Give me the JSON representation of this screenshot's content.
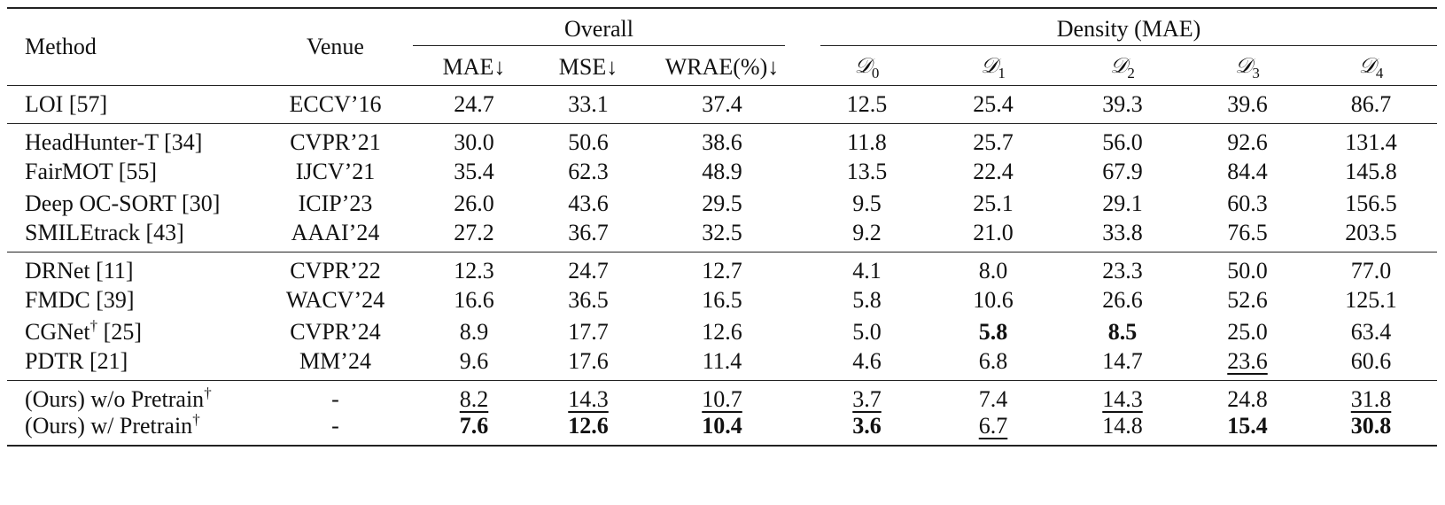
{
  "header": {
    "method": "Method",
    "venue": "Venue",
    "overall": "Overall",
    "density": "Density (MAE)",
    "metrics": [
      "MAE↓",
      "MSE↓",
      "WRAE(%)↓"
    ],
    "density_symbol": "𝒟",
    "density_subs": [
      "0",
      "1",
      "2",
      "3",
      "4"
    ]
  },
  "groups": [
    [
      {
        "method": "LOI [57]",
        "sup": "",
        "venue": "ECCV’16",
        "cells": [
          {
            "v": "24.7"
          },
          {
            "v": "33.1"
          },
          {
            "v": "37.4"
          },
          {
            "v": "12.5"
          },
          {
            "v": "25.4"
          },
          {
            "v": "39.3"
          },
          {
            "v": "39.6"
          },
          {
            "v": "86.7"
          }
        ]
      }
    ],
    [
      {
        "method": "HeadHunter-T [34]",
        "sup": "",
        "venue": "CVPR’21",
        "cells": [
          {
            "v": "30.0"
          },
          {
            "v": "50.6"
          },
          {
            "v": "38.6"
          },
          {
            "v": "11.8"
          },
          {
            "v": "25.7"
          },
          {
            "v": "56.0"
          },
          {
            "v": "92.6"
          },
          {
            "v": "131.4"
          }
        ]
      },
      {
        "method": "FairMOT [55]",
        "sup": "",
        "venue": "IJCV’21",
        "cells": [
          {
            "v": "35.4"
          },
          {
            "v": "62.3"
          },
          {
            "v": "48.9"
          },
          {
            "v": "13.5"
          },
          {
            "v": "22.4"
          },
          {
            "v": "67.9"
          },
          {
            "v": "84.4"
          },
          {
            "v": "145.8"
          }
        ]
      },
      {
        "method": "Deep OC-SORT [30]",
        "sup": "",
        "venue": "ICIP’23",
        "cells": [
          {
            "v": "26.0"
          },
          {
            "v": "43.6"
          },
          {
            "v": "29.5"
          },
          {
            "v": "9.5"
          },
          {
            "v": "25.1"
          },
          {
            "v": "29.1"
          },
          {
            "v": "60.3"
          },
          {
            "v": "156.5"
          }
        ]
      },
      {
        "method": "SMILEtrack [43]",
        "sup": "",
        "venue": "AAAI’24",
        "cells": [
          {
            "v": "27.2"
          },
          {
            "v": "36.7"
          },
          {
            "v": "32.5"
          },
          {
            "v": "9.2"
          },
          {
            "v": "21.0"
          },
          {
            "v": "33.8"
          },
          {
            "v": "76.5"
          },
          {
            "v": "203.5"
          }
        ]
      }
    ],
    [
      {
        "method": "DRNet [11]",
        "sup": "",
        "venue": "CVPR’22",
        "cells": [
          {
            "v": "12.3"
          },
          {
            "v": "24.7"
          },
          {
            "v": "12.7"
          },
          {
            "v": "4.1"
          },
          {
            "v": "8.0"
          },
          {
            "v": "23.3"
          },
          {
            "v": "50.0"
          },
          {
            "v": "77.0"
          }
        ]
      },
      {
        "method": "FMDC [39]",
        "sup": "",
        "venue": "WACV’24",
        "cells": [
          {
            "v": "16.6"
          },
          {
            "v": "36.5"
          },
          {
            "v": "16.5"
          },
          {
            "v": "5.8"
          },
          {
            "v": "10.6"
          },
          {
            "v": "26.6"
          },
          {
            "v": "52.6"
          },
          {
            "v": "125.1"
          }
        ]
      },
      {
        "method": "CGNet",
        "sup": "†",
        "suffix": " [25]",
        "venue": "CVPR’24",
        "cells": [
          {
            "v": "8.9"
          },
          {
            "v": "17.7"
          },
          {
            "v": "12.6"
          },
          {
            "v": "5.0"
          },
          {
            "v": "5.8",
            "b": true
          },
          {
            "v": "8.5",
            "b": true
          },
          {
            "v": "25.0"
          },
          {
            "v": "63.4"
          }
        ]
      },
      {
        "method": "PDTR [21]",
        "sup": "",
        "venue": "MM’24",
        "cells": [
          {
            "v": "9.6"
          },
          {
            "v": "17.6"
          },
          {
            "v": "11.4"
          },
          {
            "v": "4.6"
          },
          {
            "v": "6.8"
          },
          {
            "v": "14.7"
          },
          {
            "v": "23.6",
            "u": true
          },
          {
            "v": "60.6"
          }
        ]
      }
    ],
    [
      {
        "method": "(Ours) w/o Pretrain",
        "sup": "†",
        "venue": "-",
        "cells": [
          {
            "v": "8.2",
            "u": true
          },
          {
            "v": "14.3",
            "u": true
          },
          {
            "v": "10.7",
            "u": true
          },
          {
            "v": "3.7",
            "u": true
          },
          {
            "v": "7.4"
          },
          {
            "v": "14.3",
            "u": true
          },
          {
            "v": "24.8"
          },
          {
            "v": "31.8",
            "u": true
          }
        ]
      },
      {
        "method": "(Ours) w/ Pretrain",
        "sup": "†",
        "venue": "-",
        "cells": [
          {
            "v": "7.6",
            "b": true
          },
          {
            "v": "12.6",
            "b": true
          },
          {
            "v": "10.4",
            "b": true
          },
          {
            "v": "3.6",
            "b": true
          },
          {
            "v": "6.7",
            "u": true
          },
          {
            "v": "14.8"
          },
          {
            "v": "15.4",
            "b": true
          },
          {
            "v": "30.8",
            "b": true
          }
        ]
      }
    ]
  ]
}
